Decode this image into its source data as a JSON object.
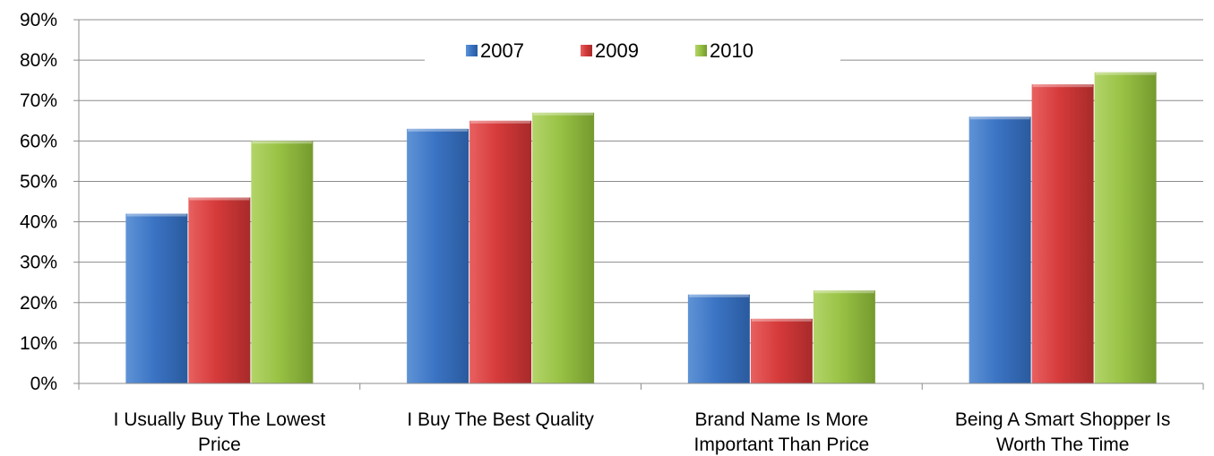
{
  "chart_data": {
    "type": "bar",
    "categories": [
      [
        "I Usually Buy The Lowest",
        "Price"
      ],
      [
        "I Buy The Best Quality"
      ],
      [
        "Brand Name Is More",
        "Important Than Price"
      ],
      [
        "Being A Smart Shopper Is",
        "Worth The Time"
      ]
    ],
    "series": [
      {
        "name": "2007",
        "values": [
          42,
          63,
          22,
          66
        ],
        "color": "#3b74c4"
      },
      {
        "name": "2009",
        "values": [
          46,
          65,
          16,
          74
        ],
        "color": "#d63a3a"
      },
      {
        "name": "2010",
        "values": [
          60,
          67,
          23,
          77
        ],
        "color": "#98c244"
      }
    ],
    "ylim": [
      0,
      90
    ],
    "yticks": [
      "0%",
      "10%",
      "20%",
      "30%",
      "40%",
      "50%",
      "60%",
      "70%",
      "80%",
      "90%"
    ],
    "grid": true,
    "legend": "top-center"
  }
}
